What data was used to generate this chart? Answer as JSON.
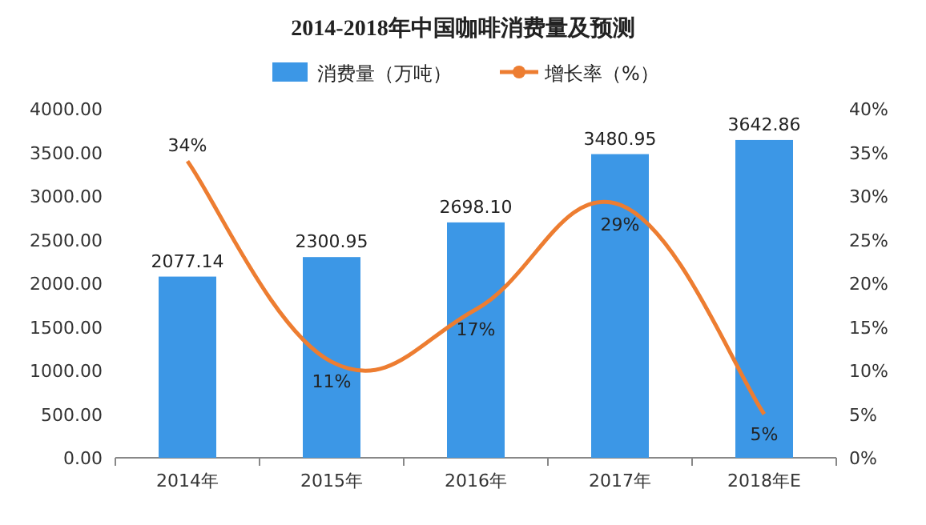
{
  "chart_data": {
    "type": "bar",
    "title": "2014-2018年中国咖啡消费量及预测",
    "categories": [
      "2014年",
      "2015年",
      "2016年",
      "2017年",
      "2018年E"
    ],
    "series": [
      {
        "name": "消费量（万吨）",
        "color": "#3c97e6",
        "values": [
          2077.14,
          2300.95,
          2698.1,
          3480.95,
          3642.86
        ],
        "value_labels": [
          "2077.14",
          "2300.95",
          "2698.10",
          "3480.95",
          "3642.86"
        ]
      },
      {
        "name": "增长率（%）",
        "type": "line",
        "axis": "y2",
        "color": "#ed7d31",
        "marker": "none",
        "values": [
          34,
          11,
          17,
          29,
          5
        ],
        "value_labels": [
          "34%",
          "11%",
          "17%",
          "29%",
          "5%"
        ]
      }
    ],
    "ylim": [
      0,
      4000
    ],
    "yticks": [
      {
        "value": 0,
        "label": "0.00"
      },
      {
        "value": 500,
        "label": "500.00"
      },
      {
        "value": 1000,
        "label": "1000.00"
      },
      {
        "value": 1500,
        "label": "1500.00"
      },
      {
        "value": 2000,
        "label": "2000.00"
      },
      {
        "value": 2500,
        "label": "2500.00"
      },
      {
        "value": 3000,
        "label": "3000.00"
      },
      {
        "value": 3500,
        "label": "3500.00"
      },
      {
        "value": 4000,
        "label": "4000.00"
      }
    ],
    "y2lim": [
      0,
      40
    ],
    "y2ticks": [
      {
        "value": 0,
        "label": "0%"
      },
      {
        "value": 5,
        "label": "5%"
      },
      {
        "value": 10,
        "label": "10%"
      },
      {
        "value": 15,
        "label": "15%"
      },
      {
        "value": 20,
        "label": "20%"
      },
      {
        "value": 25,
        "label": "25%"
      },
      {
        "value": 30,
        "label": "30%"
      },
      {
        "value": 35,
        "label": "35%"
      },
      {
        "value": 40,
        "label": "40%"
      }
    ],
    "legend": "top",
    "grid": false
  }
}
